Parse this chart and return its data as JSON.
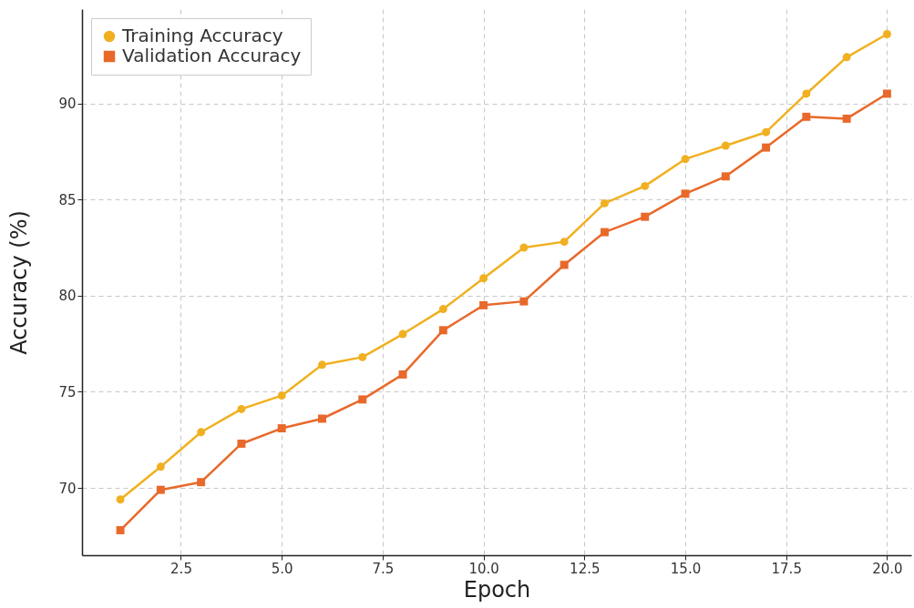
{
  "chart_data": {
    "type": "line",
    "xlabel": "Epoch",
    "ylabel": "Accuracy (%)",
    "x": [
      1,
      2,
      3,
      4,
      5,
      6,
      7,
      8,
      9,
      10,
      11,
      12,
      13,
      14,
      15,
      16,
      17,
      18,
      19,
      20
    ],
    "series": [
      {
        "name": "Training Accuracy",
        "color": "#f0b020",
        "marker": "circle",
        "values": [
          69.4,
          71.1,
          72.9,
          74.1,
          74.8,
          76.4,
          76.8,
          78.0,
          79.3,
          80.9,
          82.5,
          82.8,
          84.8,
          85.7,
          87.1,
          87.8,
          88.5,
          90.5,
          92.4,
          93.6
        ]
      },
      {
        "name": "Validation Accuracy",
        "color": "#e8692a",
        "marker": "square",
        "values": [
          67.8,
          69.9,
          70.3,
          72.3,
          73.1,
          73.6,
          74.6,
          75.9,
          78.2,
          79.5,
          79.7,
          81.6,
          83.3,
          84.1,
          85.3,
          86.2,
          87.7,
          89.3,
          89.2,
          90.5
        ]
      }
    ],
    "xlim": [
      0.05,
      20.6
    ],
    "xticks": [
      {
        "value": 2.5,
        "label": "2.5"
      },
      {
        "value": 5,
        "label": "5.0"
      },
      {
        "value": 7.5,
        "label": "7.5"
      },
      {
        "value": 10,
        "label": "10.0"
      },
      {
        "value": 12.5,
        "label": "12.5"
      },
      {
        "value": 15,
        "label": "15.0"
      },
      {
        "value": 17.5,
        "label": "17.5"
      },
      {
        "value": 20,
        "label": "20.0"
      }
    ],
    "ylim": [
      66.5,
      94.9
    ],
    "yticks": [
      70,
      75,
      80,
      85,
      90
    ],
    "grid": true,
    "legend": "top left",
    "line_style": "solid"
  }
}
